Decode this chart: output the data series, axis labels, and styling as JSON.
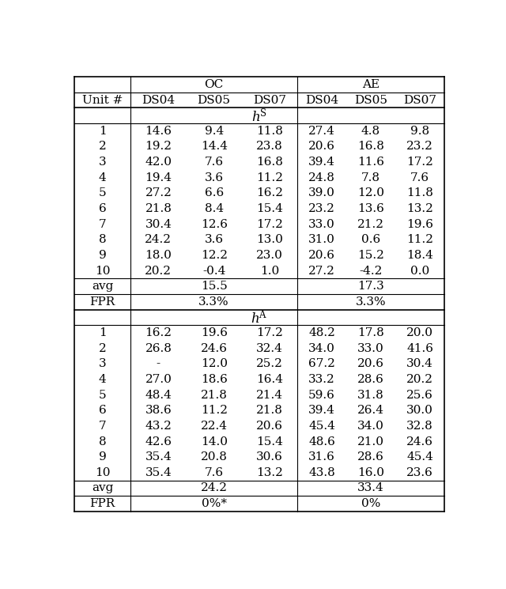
{
  "header_row1_oc": "OC",
  "header_row1_ae": "AE",
  "header_row2": [
    "Unit #",
    "DS04",
    "DS05",
    "DS07",
    "DS04",
    "DS05",
    "DS07"
  ],
  "section1_label": "h^S",
  "section1_data": [
    [
      "1",
      "14.6",
      "9.4",
      "11.8",
      "27.4",
      "4.8",
      "9.8"
    ],
    [
      "2",
      "19.2",
      "14.4",
      "23.8",
      "20.6",
      "16.8",
      "23.2"
    ],
    [
      "3",
      "42.0",
      "7.6",
      "16.8",
      "39.4",
      "11.6",
      "17.2"
    ],
    [
      "4",
      "19.4",
      "3.6",
      "11.2",
      "24.8",
      "7.8",
      "7.6"
    ],
    [
      "5",
      "27.2",
      "6.6",
      "16.2",
      "39.0",
      "12.0",
      "11.8"
    ],
    [
      "6",
      "21.8",
      "8.4",
      "15.4",
      "23.2",
      "13.6",
      "13.2"
    ],
    [
      "7",
      "30.4",
      "12.6",
      "17.2",
      "33.0",
      "21.2",
      "19.6"
    ],
    [
      "8",
      "24.2",
      "3.6",
      "13.0",
      "31.0",
      "0.6",
      "11.2"
    ],
    [
      "9",
      "18.0",
      "12.2",
      "23.0",
      "20.6",
      "15.2",
      "18.4"
    ],
    [
      "10",
      "20.2",
      "-0.4",
      "1.0",
      "27.2",
      "-4.2",
      "0.0"
    ]
  ],
  "section1_avg_oc": "15.5",
  "section1_avg_ae": "17.3",
  "section1_fpr_oc": "3.3%",
  "section1_fpr_ae": "3.3%",
  "section2_label": "h^A",
  "section2_data": [
    [
      "1",
      "16.2",
      "19.6",
      "17.2",
      "48.2",
      "17.8",
      "20.0"
    ],
    [
      "2",
      "26.8",
      "24.6",
      "32.4",
      "34.0",
      "33.0",
      "41.6"
    ],
    [
      "3",
      "-",
      "12.0",
      "25.2",
      "67.2",
      "20.6",
      "30.4"
    ],
    [
      "4",
      "27.0",
      "18.6",
      "16.4",
      "33.2",
      "28.6",
      "20.2"
    ],
    [
      "5",
      "48.4",
      "21.8",
      "21.4",
      "59.6",
      "31.8",
      "25.6"
    ],
    [
      "6",
      "38.6",
      "11.2",
      "21.8",
      "39.4",
      "26.4",
      "30.0"
    ],
    [
      "7",
      "43.2",
      "22.4",
      "20.6",
      "45.4",
      "34.0",
      "32.8"
    ],
    [
      "8",
      "42.6",
      "14.0",
      "15.4",
      "48.6",
      "21.0",
      "24.6"
    ],
    [
      "9",
      "35.4",
      "20.8",
      "30.6",
      "31.6",
      "28.6",
      "45.4"
    ],
    [
      "10",
      "35.4",
      "7.6",
      "13.2",
      "43.8",
      "16.0",
      "23.6"
    ]
  ],
  "section2_avg_oc": "24.2",
  "section2_avg_ae": "33.4",
  "section2_fpr_oc": "0%*",
  "section2_fpr_ae": "0%"
}
